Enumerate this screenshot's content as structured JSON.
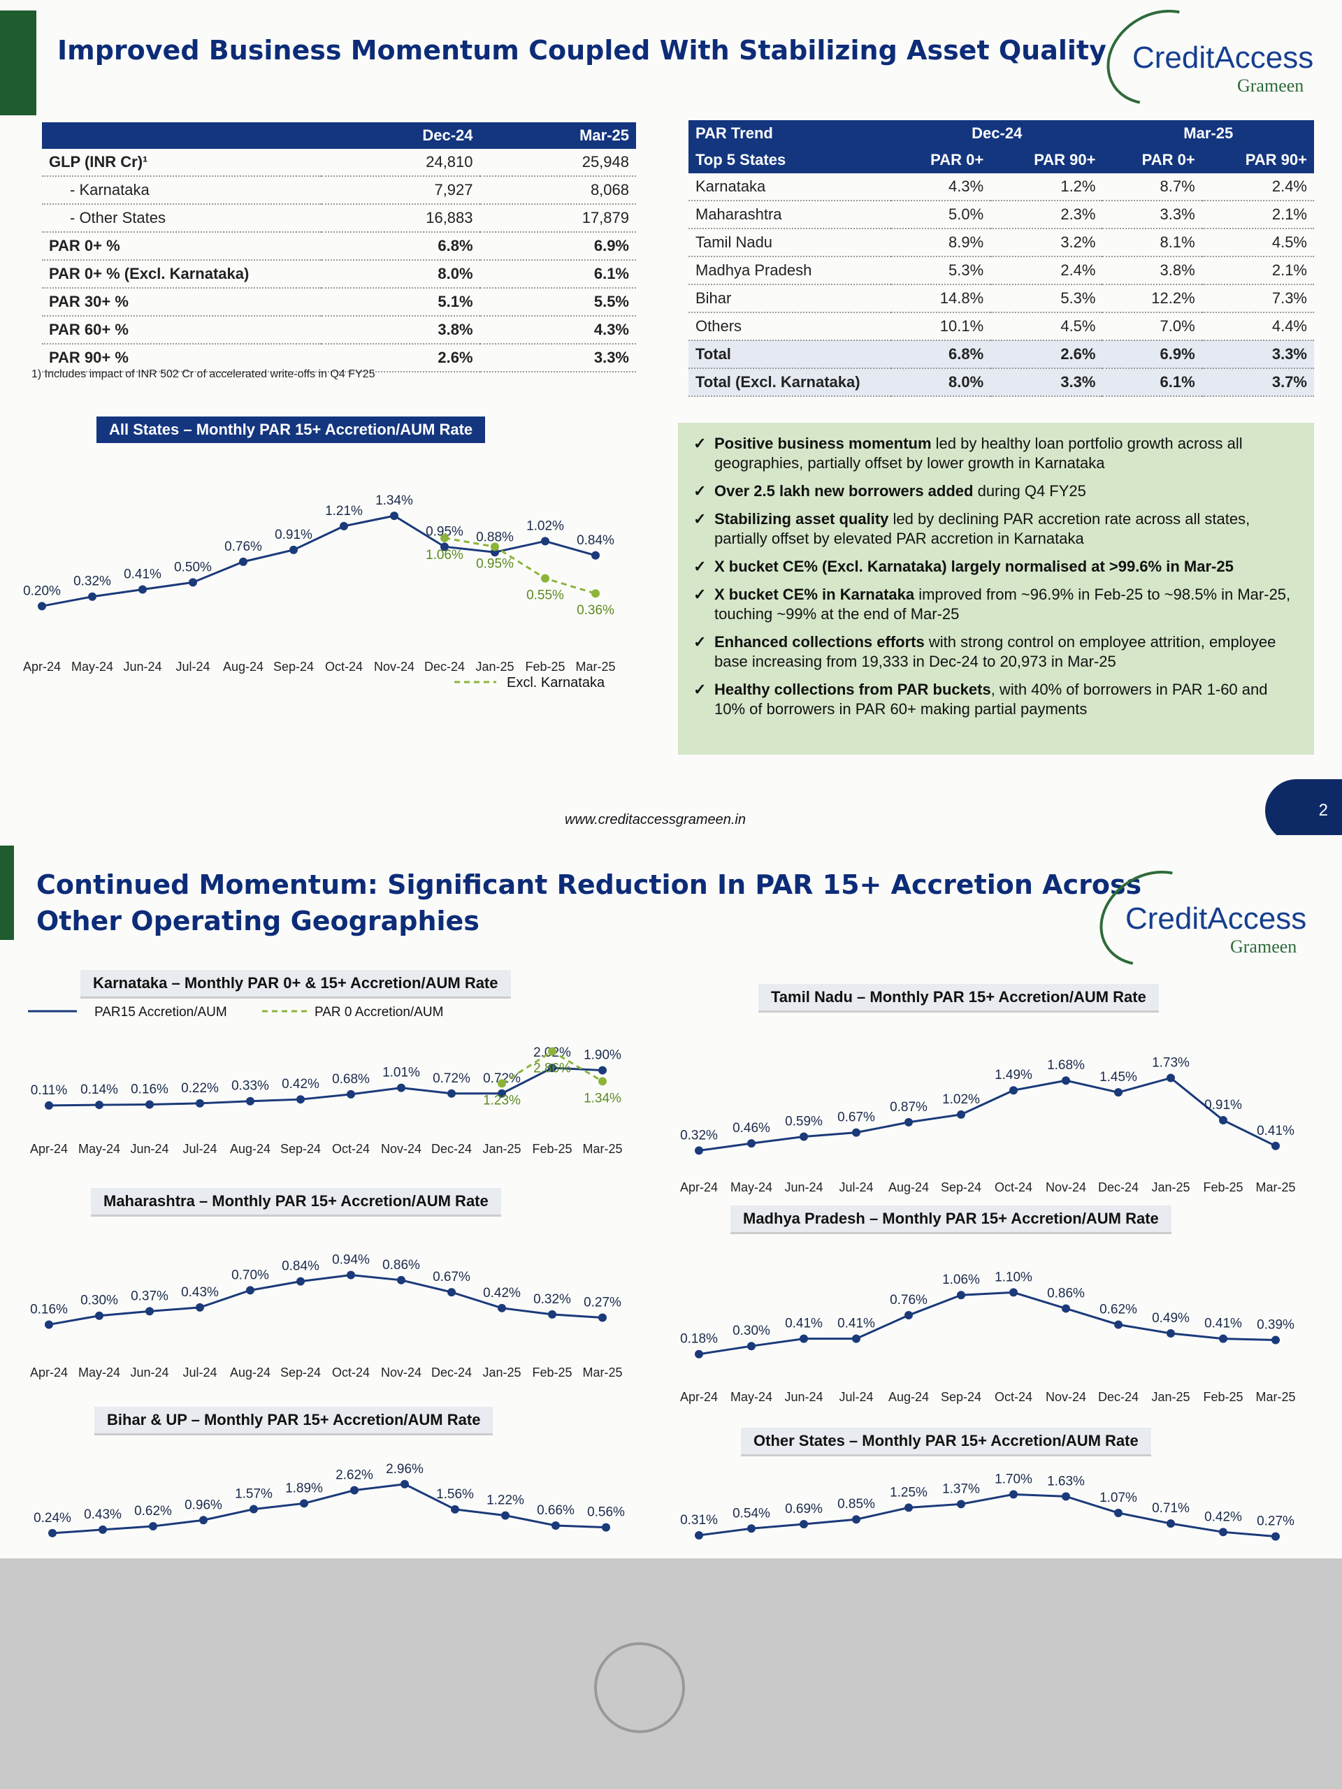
{
  "slide1": {
    "title": "Improved Business Momentum Coupled With Stabilizing Asset Quality",
    "logo_name": "CreditAccess",
    "logo_sub": "Grameen",
    "table1": {
      "headers": [
        "",
        "Dec-24",
        "Mar-25"
      ],
      "rows": [
        {
          "label": "GLP (INR Cr)¹",
          "v1": "24,810",
          "v2": "25,948",
          "style": "main"
        },
        {
          "label": "- Karnataka",
          "v1": "7,927",
          "v2": "8,068",
          "style": "sub"
        },
        {
          "label": "- Other States",
          "v1": "16,883",
          "v2": "17,879",
          "style": "sub"
        },
        {
          "label": "PAR 0+ %",
          "v1": "6.8%",
          "v2": "6.9%",
          "style": "bold"
        },
        {
          "label": "PAR 0+ % (Excl. Karnataka)",
          "v1": "8.0%",
          "v2": "6.1%",
          "style": "bold"
        },
        {
          "label": "PAR 30+ %",
          "v1": "5.1%",
          "v2": "5.5%",
          "style": "bold"
        },
        {
          "label": "PAR 60+ %",
          "v1": "3.8%",
          "v2": "4.3%",
          "style": "bold"
        },
        {
          "label": "PAR 90+ %",
          "v1": "2.6%",
          "v2": "3.3%",
          "style": "bold"
        }
      ],
      "footnote": "1) Includes impact of INR 502 Cr of accelerated write-offs in Q4 FY25"
    },
    "table2": {
      "header_top": [
        "PAR Trend",
        "Dec-24",
        "Mar-25"
      ],
      "header_sub": [
        "Top 5 States",
        "PAR 0+",
        "PAR 90+",
        "PAR 0+",
        "PAR 90+"
      ],
      "rows": [
        {
          "state": "Karnataka",
          "a": "4.3%",
          "b": "1.2%",
          "c": "8.7%",
          "d": "2.4%"
        },
        {
          "state": "Maharashtra",
          "a": "5.0%",
          "b": "2.3%",
          "c": "3.3%",
          "d": "2.1%"
        },
        {
          "state": "Tamil Nadu",
          "a": "8.9%",
          "b": "3.2%",
          "c": "8.1%",
          "d": "4.5%"
        },
        {
          "state": "Madhya Pradesh",
          "a": "5.3%",
          "b": "2.4%",
          "c": "3.8%",
          "d": "2.1%"
        },
        {
          "state": "Bihar",
          "a": "14.8%",
          "b": "5.3%",
          "c": "12.2%",
          "d": "7.3%"
        },
        {
          "state": "Others",
          "a": "10.1%",
          "b": "4.5%",
          "c": "7.0%",
          "d": "4.4%"
        },
        {
          "state": "Total",
          "a": "6.8%",
          "b": "2.6%",
          "c": "6.9%",
          "d": "3.3%"
        },
        {
          "state": "Total (Excl. Karnataka)",
          "a": "8.0%",
          "b": "3.3%",
          "c": "6.1%",
          "d": "3.7%"
        }
      ]
    },
    "bullets": [
      {
        "bold": "Positive business momentum",
        "text": " led by healthy loan portfolio growth across all geographies, partially offset by lower growth in Karnataka"
      },
      {
        "bold": "Over 2.5 lakh new borrowers added",
        "text": " during Q4 FY25"
      },
      {
        "bold": "Stabilizing asset quality",
        "text": " led by declining PAR accretion rate across all states, partially offset by elevated PAR accretion in Karnataka"
      },
      {
        "bold": "X bucket CE% (Excl. Karnataka) largely normalised at >99.6% in Mar-25",
        "text": ""
      },
      {
        "bold": "X bucket CE% in Karnataka",
        "text": " improved from ~96.9% in Feb-25 to ~98.5% in Mar-25, touching ~99% at the end of Mar-25"
      },
      {
        "bold": "Enhanced collections efforts",
        "text": " with strong control on employee attrition, employee base increasing from 19,333 in Dec-24 to 20,973 in Mar-25"
      },
      {
        "bold": "Healthy collections from PAR buckets",
        "text": ", with 40% of borrowers in PAR 1-60 and 10% of borrowers in PAR 60+ making partial payments"
      }
    ],
    "url": "www.creditaccessgrameen.in",
    "page_number": "2"
  },
  "slide2": {
    "title_line1": "Continued Momentum: Significant Reduction In PAR 15+ Accretion Across",
    "title_line2": "Other Operating Geographies",
    "logo_name": "CreditAccess",
    "logo_sub": "Grameen"
  },
  "months": [
    "Apr-24",
    "May-24",
    "Jun-24",
    "Jul-24",
    "Aug-24",
    "Sep-24",
    "Oct-24",
    "Nov-24",
    "Dec-24",
    "Jan-25",
    "Feb-25",
    "Mar-25"
  ],
  "chart_data": [
    {
      "id": "all_states",
      "type": "line",
      "title": "All States – Monthly PAR 15+ Accretion/AUM Rate",
      "series": [
        {
          "values": [
            0.2,
            0.32,
            0.41,
            0.5,
            0.76,
            0.91,
            1.21,
            1.34,
            0.95,
            0.88,
            1.02,
            0.84
          ],
          "labels": [
            "0.20%",
            "0.32%",
            "0.41%",
            "0.50%",
            "0.76%",
            "0.91%",
            "1.21%",
            "1.34%",
            "0.95%",
            "0.88%",
            "1.02%",
            "0.84%"
          ]
        },
        {
          "name": "Excl. Karnataka",
          "start_index": 8,
          "values": [
            1.06,
            0.95,
            0.55,
            0.36
          ],
          "labels": [
            "1.06%",
            "0.95%",
            "0.55%",
            "0.36%"
          ]
        }
      ],
      "ylim": [
        0,
        1.5
      ]
    },
    {
      "id": "karnataka",
      "type": "line",
      "title": "Karnataka – Monthly PAR 0+ & 15+ Accretion/AUM Rate",
      "series": [
        {
          "name": "PAR15 Accretion/AUM",
          "values": [
            0.11,
            0.14,
            0.16,
            0.22,
            0.33,
            0.42,
            0.68,
            1.01,
            0.72,
            0.72,
            2.02,
            1.9
          ],
          "labels": [
            "0.11%",
            "0.14%",
            "0.16%",
            "0.22%",
            "0.33%",
            "0.42%",
            "0.68%",
            "1.01%",
            "0.72%",
            "0.72%",
            "2.02%",
            "1.90%"
          ]
        },
        {
          "name": "PAR 0 Accretion/AUM",
          "start_index": 9,
          "values": [
            1.23,
            2.86,
            1.34
          ],
          "labels": [
            "1.23%",
            "2.86%",
            "1.34%"
          ]
        }
      ],
      "ylim": [
        0,
        3.2
      ]
    },
    {
      "id": "tamil_nadu",
      "type": "line",
      "title": "Tamil Nadu – Monthly PAR 15+ Accretion/AUM Rate",
      "series": [
        {
          "values": [
            0.32,
            0.46,
            0.59,
            0.67,
            0.87,
            1.02,
            1.49,
            1.68,
            1.45,
            1.73,
            0.91,
            0.41
          ],
          "labels": [
            "0.32%",
            "0.46%",
            "0.59%",
            "0.67%",
            "0.87%",
            "1.02%",
            "1.49%",
            "1.68%",
            "1.45%",
            "1.73%",
            "0.91%",
            "0.41%"
          ]
        }
      ],
      "ylim": [
        0,
        1.9
      ]
    },
    {
      "id": "maharashtra",
      "type": "line",
      "title": "Maharashtra – Monthly PAR 15+ Accretion/AUM Rate",
      "series": [
        {
          "values": [
            0.16,
            0.3,
            0.37,
            0.43,
            0.7,
            0.84,
            0.94,
            0.86,
            0.67,
            0.42,
            0.32,
            0.27
          ],
          "labels": [
            "0.16%",
            "0.30%",
            "0.37%",
            "0.43%",
            "0.70%",
            "0.84%",
            "0.94%",
            "0.86%",
            "0.67%",
            "0.42%",
            "0.32%",
            "0.27%"
          ]
        }
      ],
      "ylim": [
        0,
        1.1
      ]
    },
    {
      "id": "madhya_pradesh",
      "type": "line",
      "title": "Madhya Pradesh – Monthly PAR 15+ Accretion/AUM Rate",
      "series": [
        {
          "values": [
            0.18,
            0.3,
            0.41,
            0.41,
            0.76,
            1.06,
            1.1,
            0.86,
            0.62,
            0.49,
            0.41,
            0.39
          ],
          "labels": [
            "0.18%",
            "0.30%",
            "0.41%",
            "0.41%",
            "0.76%",
            "1.06%",
            "1.10%",
            "0.86%",
            "0.62%",
            "0.49%",
            "0.41%",
            "0.39%"
          ]
        }
      ],
      "ylim": [
        0,
        1.25
      ]
    },
    {
      "id": "bihar_up",
      "type": "line",
      "title": "Bihar & UP – Monthly PAR 15+ Accretion/AUM Rate",
      "series": [
        {
          "values": [
            0.24,
            0.43,
            0.62,
            0.96,
            1.57,
            1.89,
            2.62,
            2.96,
            1.56,
            1.22,
            0.66,
            0.56
          ],
          "labels": [
            "0.24%",
            "0.43%",
            "0.62%",
            "0.96%",
            "1.57%",
            "1.89%",
            "2.62%",
            "2.96%",
            "1.56%",
            "1.22%",
            "0.66%",
            "0.56%"
          ]
        }
      ],
      "ylim": [
        0,
        3.3
      ]
    },
    {
      "id": "other_states",
      "type": "line",
      "title": "Other States – Monthly PAR 15+ Accretion/AUM Rate",
      "series": [
        {
          "values": [
            0.31,
            0.54,
            0.69,
            0.85,
            1.25,
            1.37,
            1.7,
            1.63,
            1.07,
            0.71,
            0.42,
            0.27
          ],
          "labels": [
            "0.31%",
            "0.54%",
            "0.69%",
            "0.85%",
            "1.25%",
            "1.37%",
            "1.70%",
            "1.63%",
            "1.07%",
            "0.71%",
            "0.42%",
            "0.27%"
          ]
        }
      ],
      "ylim": [
        0,
        1.9
      ]
    }
  ],
  "colors": {
    "navy": "#14367f",
    "title": "#0d2c78",
    "line": "#1b3a7a",
    "dashed": "#8cb43a",
    "green_box": "#d6e6c9"
  }
}
